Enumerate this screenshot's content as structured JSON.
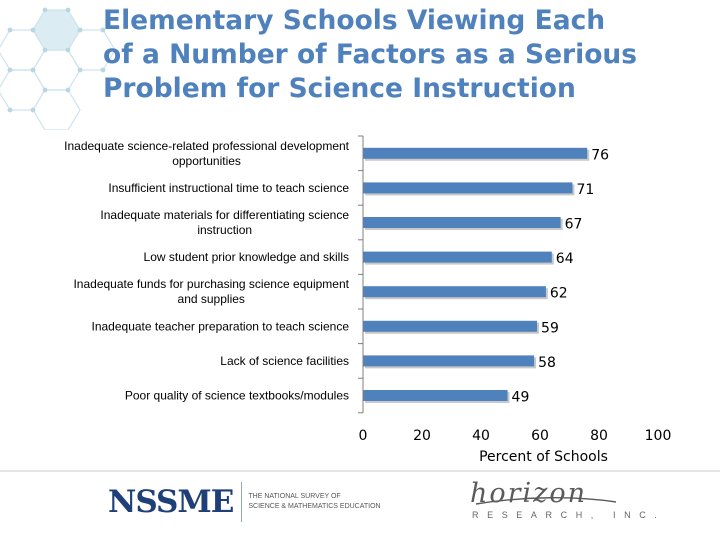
{
  "slide": {
    "title_lines": [
      "Elementary Schools Viewing Each",
      "of a Number of Factors as a Serious",
      "Problem for Science Instruction"
    ]
  },
  "chart_data": {
    "type": "bar",
    "orientation": "horizontal",
    "categories": [
      [
        "Inadequate science-related professional development",
        "opportunities"
      ],
      [
        "Insufficient instructional time to teach science"
      ],
      [
        "Inadequate materials for differentiating science",
        "instruction"
      ],
      [
        "Low student prior knowledge and skills"
      ],
      [
        "Inadequate funds for purchasing science equipment",
        "and supplies"
      ],
      [
        "Inadequate teacher preparation to teach science"
      ],
      [
        "Lack of science facilities"
      ],
      [
        "Poor quality of science textbooks/modules"
      ]
    ],
    "values": [
      76,
      71,
      67,
      64,
      62,
      59,
      58,
      49
    ],
    "xlabel": "Percent of Schools",
    "xlim": [
      0,
      100
    ],
    "xticks": [
      0,
      20,
      40,
      60,
      80,
      100
    ],
    "bar_color": "#4f81bd",
    "grid": false
  },
  "footer": {
    "nssme_word": "NSSME",
    "nssme_sub": [
      "THE NATIONAL SURVEY OF",
      "SCIENCE & MATHEMATICS EDUCATION"
    ],
    "horizon_word": "horizon",
    "horizon_sub": "RESEARCH, INC."
  }
}
